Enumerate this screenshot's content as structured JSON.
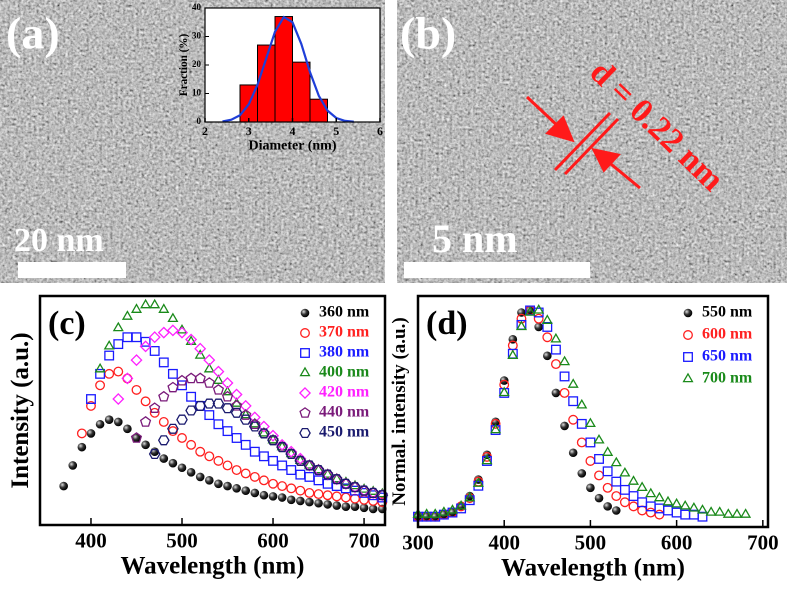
{
  "images": [
    {
      "label": "(a)",
      "scale_bar": "20 nm"
    },
    {
      "label": "(b)",
      "scale_bar": "5 nm",
      "annotation": "d = 0.22 nm"
    }
  ],
  "chart_data": [
    {
      "type": "histogram",
      "xlabel": "Diameter (nm)",
      "ylabel": "Fraction (%)",
      "bins": [
        2.8,
        3.2,
        3.6,
        4.0,
        4.4,
        4.8
      ],
      "counts": [
        13,
        27,
        37,
        21,
        8
      ],
      "color": "#ff0000",
      "xlim": [
        2,
        6
      ],
      "ylim": [
        0,
        40
      ],
      "xticks": [
        2,
        3,
        4,
        5,
        6
      ],
      "yticks": [
        0,
        10,
        20,
        30,
        40
      ],
      "fit": {
        "color": "#1f3fd8",
        "x": [
          2.4,
          2.6,
          2.8,
          3.0,
          3.2,
          3.4,
          3.6,
          3.8,
          4.0,
          4.2,
          4.4,
          4.6,
          4.8,
          5.0,
          5.2,
          5.4
        ],
        "values": [
          0.2,
          0.8,
          2.4,
          6.2,
          13.1,
          22.4,
          31.7,
          36.8,
          35.0,
          27.4,
          17.5,
          9.2,
          4.0,
          1.4,
          0.4,
          0.1
        ]
      }
    },
    {
      "type": "scatter",
      "panel": "(c)",
      "xlabel": "Wavelength (nm)",
      "ylabel": "Intensity (a.u.)",
      "xlim": [
        344,
        723
      ],
      "ylim": [
        0,
        100
      ],
      "xticks": [
        400,
        500,
        600,
        700
      ],
      "legend": "upper right",
      "series": [
        {
          "name": "360 nm",
          "color": "#000000",
          "marker": "sphere",
          "x": [
            370,
            380,
            390,
            400,
            410,
            420,
            430,
            440,
            450,
            460,
            470,
            480,
            490,
            500,
            510,
            520,
            530,
            540,
            550,
            560,
            570,
            580,
            590,
            600,
            610,
            620,
            630,
            640,
            650,
            660,
            670,
            680,
            690,
            700,
            710,
            720
          ],
          "values": [
            17,
            26,
            34,
            40,
            44,
            46,
            45,
            42,
            38,
            35,
            32,
            29,
            27,
            25,
            23,
            21,
            19.5,
            18,
            17,
            16,
            15,
            14,
            13,
            12.5,
            12,
            11,
            10.5,
            10,
            9.5,
            9,
            8.5,
            8,
            8,
            7.5,
            7,
            7
          ]
        },
        {
          "name": "370 nm",
          "color": "#ff2020",
          "marker": "circle",
          "x": [
            390,
            400,
            410,
            420,
            430,
            440,
            450,
            460,
            470,
            480,
            490,
            500,
            510,
            520,
            530,
            540,
            550,
            560,
            570,
            580,
            590,
            600,
            610,
            620,
            630,
            640,
            650,
            660,
            670,
            680,
            690,
            700,
            710,
            720
          ],
          "values": [
            40,
            52,
            61,
            66,
            67,
            64,
            59,
            54,
            49,
            45,
            41,
            38,
            35,
            32,
            30,
            28,
            26,
            24,
            22.5,
            21,
            19.5,
            18,
            17,
            16,
            15,
            14,
            13.5,
            13,
            12.5,
            12,
            11.5,
            11,
            10.5,
            10
          ]
        },
        {
          "name": "380 nm",
          "color": "#1a1aff",
          "marker": "square",
          "x": [
            400,
            410,
            420,
            430,
            440,
            450,
            460,
            470,
            480,
            490,
            500,
            510,
            520,
            530,
            540,
            550,
            560,
            570,
            580,
            590,
            600,
            610,
            620,
            630,
            640,
            650,
            660,
            670,
            680,
            690,
            700,
            710,
            720
          ],
          "values": [
            55,
            66,
            74,
            79,
            82,
            82,
            80,
            76,
            71,
            66,
            61,
            56,
            52,
            48,
            44,
            41,
            38,
            35,
            32,
            30,
            28,
            26,
            24,
            22,
            21,
            19.5,
            18,
            17,
            16,
            15,
            14,
            13,
            12
          ]
        },
        {
          "name": "400 nm",
          "color": "#1a8a1a",
          "marker": "triangle",
          "x": [
            410,
            420,
            430,
            440,
            450,
            460,
            470,
            480,
            490,
            500,
            510,
            520,
            530,
            540,
            550,
            560,
            570,
            580,
            590,
            600,
            610,
            620,
            630,
            640,
            650,
            660,
            670,
            680,
            690,
            700,
            710,
            720
          ],
          "values": [
            68,
            78,
            86,
            91,
            94,
            96,
            96,
            94,
            90,
            85,
            80,
            74,
            68,
            63,
            58,
            53,
            48,
            44,
            40,
            37,
            34,
            31,
            28,
            26,
            24,
            22,
            20,
            18.5,
            17,
            15.5,
            14.5,
            13.5
          ]
        },
        {
          "name": "420 nm",
          "color": "#ff20ff",
          "marker": "diamond",
          "x": [
            430,
            440,
            450,
            460,
            470,
            480,
            490,
            500,
            510,
            520,
            530,
            540,
            550,
            560,
            570,
            580,
            590,
            600,
            610,
            620,
            630,
            640,
            650,
            660,
            670,
            680,
            690,
            700,
            710,
            720
          ],
          "values": [
            55,
            64,
            72,
            78,
            82,
            84,
            85,
            84,
            81,
            77,
            72,
            67,
            62,
            57,
            52,
            47,
            43,
            39,
            35,
            32,
            29,
            26,
            24,
            22,
            20,
            18,
            16.5,
            15,
            14,
            13
          ]
        },
        {
          "name": "440 nm",
          "color": "#7a1a7a",
          "marker": "pentagon",
          "x": [
            450,
            460,
            470,
            480,
            490,
            500,
            510,
            520,
            530,
            540,
            550,
            560,
            570,
            580,
            590,
            600,
            610,
            620,
            630,
            640,
            650,
            660,
            670,
            680,
            690,
            700,
            710,
            720
          ],
          "values": [
            38,
            45,
            51,
            56,
            60,
            63,
            64,
            64,
            62,
            59,
            56,
            52,
            48,
            44,
            40,
            37,
            34,
            31,
            28,
            26,
            24,
            22,
            20,
            18,
            16.5,
            15,
            14,
            13
          ]
        },
        {
          "name": "450 nm",
          "color": "#1a1a6e",
          "marker": "hexagon",
          "x": [
            470,
            480,
            490,
            500,
            510,
            520,
            530,
            540,
            550,
            560,
            570,
            580,
            590,
            600,
            610,
            620,
            630,
            640,
            650,
            660,
            670,
            680,
            690,
            700,
            710,
            720
          ],
          "values": [
            31,
            37,
            42,
            46,
            50,
            52,
            53,
            53,
            51,
            49,
            46,
            43,
            40,
            37,
            34,
            31,
            28,
            26,
            24,
            22,
            20,
            18,
            16.5,
            15,
            14,
            13
          ]
        }
      ]
    },
    {
      "type": "scatter",
      "panel": "(d)",
      "xlabel": "Wavelength (nm)",
      "ylabel": "Normal. intensity (a.u.)",
      "xlim": [
        300,
        706
      ],
      "ylim": [
        -0.05,
        1.07
      ],
      "xticks": [
        300,
        400,
        500,
        600,
        700
      ],
      "legend": "upper right",
      "series": [
        {
          "name": "550 nm",
          "color": "#000000",
          "marker": "sphere",
          "x": [
            300,
            310,
            320,
            330,
            340,
            350,
            360,
            370,
            380,
            390,
            400,
            410,
            420,
            430,
            440,
            450,
            460,
            470,
            480,
            490,
            500,
            510,
            520,
            530
          ],
          "values": [
            0,
            0,
            0,
            0.01,
            0.02,
            0.05,
            0.1,
            0.18,
            0.3,
            0.46,
            0.66,
            0.86,
            0.99,
            1.0,
            0.92,
            0.78,
            0.6,
            0.44,
            0.31,
            0.21,
            0.14,
            0.09,
            0.05,
            0.03
          ]
        },
        {
          "name": "600 nm",
          "color": "#ff2020",
          "marker": "circle",
          "x": [
            300,
            310,
            320,
            330,
            340,
            350,
            360,
            370,
            380,
            390,
            400,
            410,
            420,
            430,
            440,
            450,
            460,
            470,
            480,
            490,
            500,
            510,
            520,
            530,
            540,
            550,
            560,
            570,
            580
          ],
          "values": [
            0,
            0,
            0,
            0.01,
            0.02,
            0.05,
            0.09,
            0.17,
            0.29,
            0.45,
            0.64,
            0.83,
            0.96,
            1.0,
            0.96,
            0.87,
            0.74,
            0.6,
            0.47,
            0.36,
            0.27,
            0.2,
            0.14,
            0.1,
            0.07,
            0.05,
            0.03,
            0.02,
            0.01
          ]
        },
        {
          "name": "650 nm",
          "color": "#1a1aff",
          "marker": "square",
          "x": [
            300,
            310,
            320,
            330,
            340,
            350,
            360,
            370,
            380,
            390,
            400,
            410,
            420,
            430,
            440,
            450,
            460,
            470,
            480,
            490,
            500,
            510,
            520,
            530,
            540,
            550,
            560,
            570,
            580,
            590,
            600,
            610,
            620,
            630
          ],
          "values": [
            0,
            0,
            0,
            0.01,
            0.02,
            0.04,
            0.08,
            0.15,
            0.27,
            0.42,
            0.6,
            0.79,
            0.93,
            1.0,
            0.99,
            0.92,
            0.81,
            0.68,
            0.56,
            0.45,
            0.36,
            0.28,
            0.22,
            0.17,
            0.13,
            0.1,
            0.07,
            0.05,
            0.04,
            0.03,
            0.02,
            0.01,
            0.01,
            0.0
          ]
        },
        {
          "name": "700 nm",
          "color": "#1a8a1a",
          "marker": "triangle",
          "x": [
            300,
            310,
            320,
            330,
            340,
            350,
            360,
            370,
            380,
            390,
            400,
            410,
            420,
            430,
            440,
            450,
            460,
            470,
            480,
            490,
            500,
            510,
            520,
            530,
            540,
            550,
            560,
            570,
            580,
            590,
            600,
            610,
            620,
            630,
            640,
            650,
            660,
            670,
            680
          ],
          "values": [
            0.01,
            0.01,
            0.01,
            0.02,
            0.03,
            0.05,
            0.09,
            0.16,
            0.27,
            0.42,
            0.6,
            0.78,
            0.92,
            0.99,
            1.0,
            0.95,
            0.86,
            0.75,
            0.64,
            0.54,
            0.45,
            0.37,
            0.31,
            0.26,
            0.21,
            0.17,
            0.14,
            0.11,
            0.09,
            0.07,
            0.06,
            0.05,
            0.04,
            0.03,
            0.02,
            0.02,
            0.01,
            0.01,
            0.01
          ]
        }
      ]
    }
  ]
}
